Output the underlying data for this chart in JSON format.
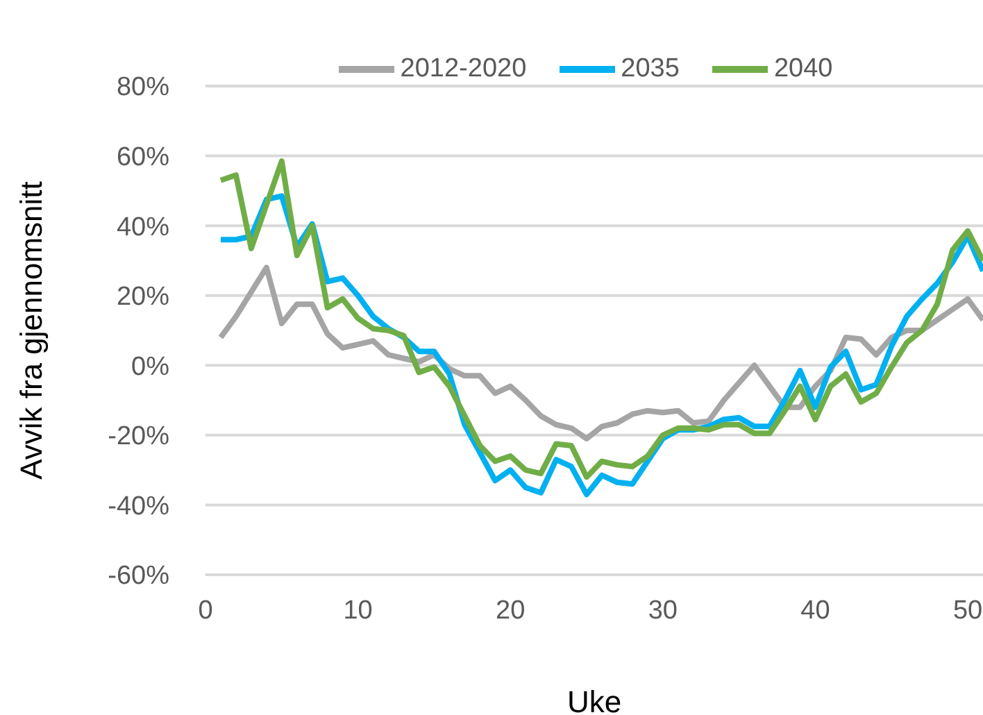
{
  "chart_data": {
    "type": "line",
    "xlabel": "Uke",
    "ylabel": "Avvik fra gjennomsnitt",
    "x": [
      1,
      2,
      3,
      4,
      5,
      6,
      7,
      8,
      9,
      10,
      11,
      12,
      13,
      14,
      15,
      16,
      17,
      18,
      19,
      20,
      21,
      22,
      23,
      24,
      25,
      26,
      27,
      28,
      29,
      30,
      31,
      32,
      33,
      34,
      35,
      36,
      37,
      38,
      39,
      40,
      41,
      42,
      43,
      44,
      45,
      46,
      47,
      48,
      49,
      50,
      51
    ],
    "series": [
      {
        "name": "2012-2020",
        "color": "#a5a5a5",
        "values": [
          8,
          14,
          21,
          28,
          12,
          17.5,
          17.5,
          9,
          5,
          6,
          7,
          3,
          2,
          1,
          3,
          -1,
          -3,
          -3,
          -8,
          -6,
          -10,
          -14.5,
          -17,
          -18,
          -21,
          -17.5,
          -16.5,
          -14,
          -13,
          -13.5,
          -13,
          -16.5,
          -16,
          -10,
          -5,
          0,
          -6,
          -12,
          -12,
          -6,
          -1.5,
          8,
          7.5,
          3,
          8,
          10,
          10,
          13,
          16,
          19,
          13
        ]
      },
      {
        "name": "2035",
        "color": "#00b0f0",
        "values": [
          36,
          36,
          37,
          47.5,
          48.5,
          34,
          40.5,
          24,
          25,
          20,
          14,
          10.5,
          8,
          4,
          4,
          -2.5,
          -17,
          -25,
          -33,
          -30,
          -35,
          -36.5,
          -27,
          -29,
          -37,
          -31.5,
          -33.5,
          -34,
          -27.5,
          -21,
          -18.5,
          -18.5,
          -17.5,
          -15.5,
          -15,
          -17.5,
          -17.5,
          -10,
          -1.5,
          -12,
          -0.5,
          4,
          -7,
          -5.5,
          5.5,
          14,
          19,
          23.5,
          29.5,
          37,
          27
        ]
      },
      {
        "name": "2040",
        "color": "#70ad47",
        "values": [
          53,
          54.5,
          33.5,
          46,
          58.5,
          31.5,
          40,
          16.5,
          19,
          13.5,
          10.5,
          10,
          8.5,
          -2,
          -0.5,
          -6,
          -14.5,
          -23,
          -27.5,
          -26,
          -30,
          -31,
          -22.5,
          -23,
          -32,
          -27.5,
          -28.5,
          -29,
          -26,
          -20,
          -18,
          -18,
          -18.5,
          -17,
          -17,
          -19.5,
          -19.5,
          -13,
          -6,
          -15.5,
          -6,
          -2.5,
          -10.5,
          -8,
          -0.5,
          6.5,
          10,
          17.5,
          33,
          38.5,
          30
        ]
      }
    ],
    "xlim": [
      0,
      51
    ],
    "xticks": [
      0,
      10,
      20,
      30,
      40,
      50
    ],
    "ylim": [
      -60,
      80
    ],
    "yticks": [
      {
        "value": -60,
        "label": "-60%"
      },
      {
        "value": -40,
        "label": "-40%"
      },
      {
        "value": -20,
        "label": "-20%"
      },
      {
        "value": 0,
        "label": "0%"
      },
      {
        "value": 20,
        "label": "20%"
      },
      {
        "value": 40,
        "label": "40%"
      },
      {
        "value": 60,
        "label": "60%"
      },
      {
        "value": 80,
        "label": "80%"
      }
    ],
    "grid": "y",
    "legend": "top",
    "marker": "none",
    "line_style": "solid"
  }
}
